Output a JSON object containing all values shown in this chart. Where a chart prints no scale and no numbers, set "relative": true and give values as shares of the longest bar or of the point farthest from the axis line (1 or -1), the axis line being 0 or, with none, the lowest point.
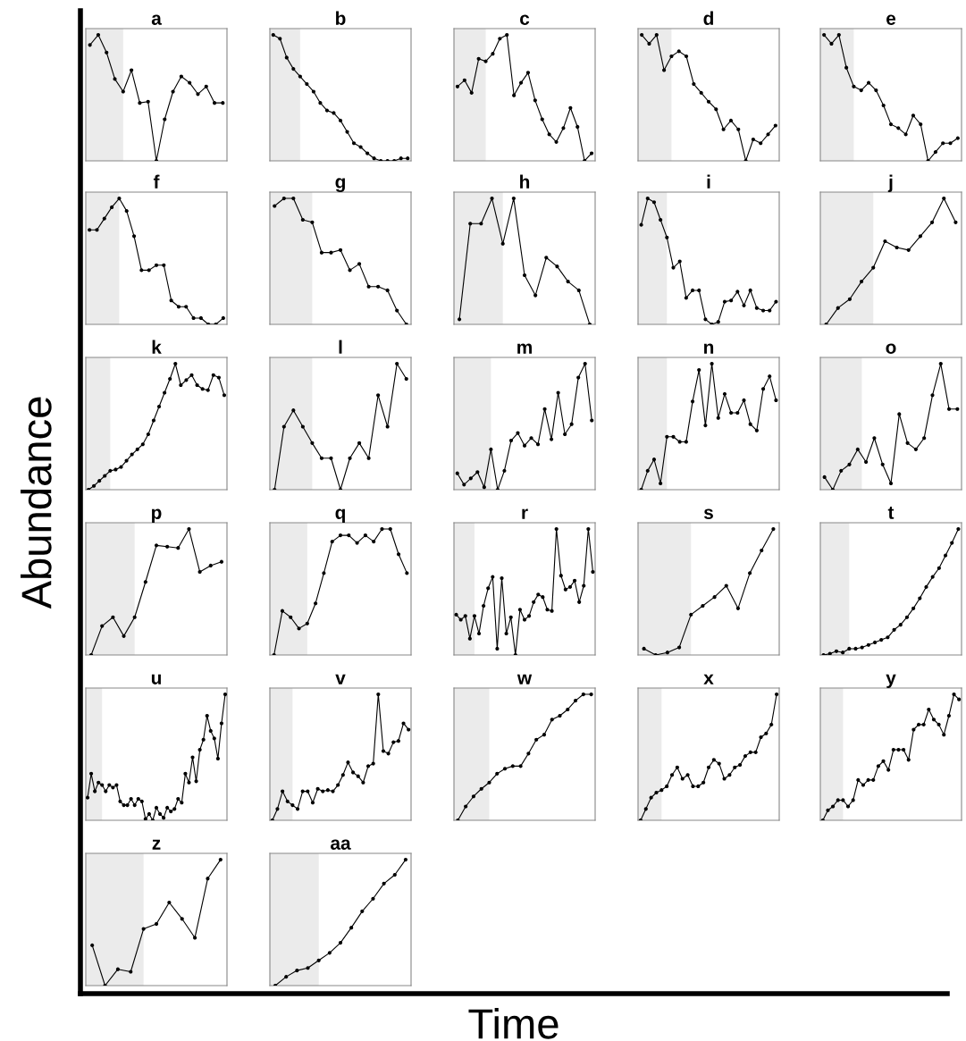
{
  "chart_data": [
    {
      "type": "line",
      "title": "a",
      "relative": true,
      "color": "#000000",
      "marker": "circle",
      "line_style": "solid",
      "categories": [
        null,
        null,
        null,
        null,
        null,
        null,
        null,
        null,
        null,
        null,
        null,
        null,
        null,
        null,
        null,
        null,
        null
      ],
      "values": [
        0.92,
        1,
        0.86,
        0.65,
        0.55,
        0.72,
        0.46,
        0.47,
        0,
        0.33,
        0.55,
        0.67,
        0.62,
        0.53,
        0.59,
        0.46,
        0.46
      ]
    },
    {
      "type": "line",
      "title": "b",
      "relative": true,
      "color": "#000000",
      "marker": "circle",
      "line_style": "solid",
      "categories": [
        null,
        null,
        null,
        null,
        null,
        null,
        null,
        null,
        null,
        null,
        null,
        null,
        null,
        null,
        null,
        null,
        null,
        null,
        null,
        null,
        null
      ],
      "values": [
        1,
        0.97,
        0.82,
        0.73,
        0.67,
        0.61,
        0.55,
        0.46,
        0.4,
        0.38,
        0.32,
        0.23,
        0.14,
        0.11,
        0.06,
        0.02,
        0,
        0,
        0,
        0.02,
        0.02
      ]
    },
    {
      "type": "line",
      "title": "c",
      "relative": true,
      "color": "#000000",
      "marker": "circle",
      "line_style": "solid",
      "categories": [
        null,
        null,
        null,
        null,
        null,
        null,
        null,
        null,
        null,
        null,
        null,
        null,
        null,
        null,
        null,
        null,
        null,
        null,
        null,
        null
      ],
      "values": [
        0.59,
        0.64,
        0.54,
        0.81,
        0.79,
        0.85,
        0.97,
        1,
        0.52,
        0.62,
        0.7,
        0.48,
        0.33,
        0.21,
        0.15,
        0.26,
        0.42,
        0.27,
        0,
        0.06
      ]
    },
    {
      "type": "line",
      "title": "d",
      "relative": true,
      "color": "#000000",
      "marker": "circle",
      "line_style": "solid",
      "categories": [
        null,
        null,
        null,
        null,
        null,
        null,
        null,
        null,
        null,
        null,
        null,
        null,
        null,
        null,
        null,
        null,
        null,
        null,
        null
      ],
      "values": [
        1,
        0.93,
        1,
        0.72,
        0.83,
        0.87,
        0.83,
        0.61,
        0.54,
        0.47,
        0.41,
        0.25,
        0.32,
        0.25,
        0,
        0.17,
        0.14,
        0.21,
        0.28
      ]
    },
    {
      "type": "line",
      "title": "e",
      "relative": true,
      "color": "#000000",
      "marker": "circle",
      "line_style": "solid",
      "categories": [
        null,
        null,
        null,
        null,
        null,
        null,
        null,
        null,
        null,
        null,
        null,
        null,
        null,
        null,
        null,
        null,
        null,
        null,
        null
      ],
      "values": [
        1,
        0.93,
        1,
        0.74,
        0.59,
        0.56,
        0.62,
        0.56,
        0.44,
        0.29,
        0.26,
        0.21,
        0.36,
        0.29,
        0,
        0.07,
        0.14,
        0.14,
        0.18
      ]
    },
    {
      "type": "line",
      "title": "f",
      "relative": true,
      "color": "#000000",
      "marker": "circle",
      "line_style": "solid",
      "categories": [
        null,
        null,
        null,
        null,
        null,
        null,
        null,
        null,
        null,
        null,
        null,
        null,
        null,
        null,
        null,
        null,
        null,
        null,
        null
      ],
      "values": [
        0.75,
        0.75,
        0.84,
        0.93,
        1,
        0.9,
        0.7,
        0.43,
        0.43,
        0.47,
        0.47,
        0.19,
        0.14,
        0.14,
        0.05,
        0.05,
        0,
        0,
        0.05
      ]
    },
    {
      "type": "line",
      "title": "g",
      "relative": true,
      "color": "#000000",
      "marker": "circle",
      "line_style": "solid",
      "categories": [
        null,
        null,
        null,
        null,
        null,
        null,
        null,
        null,
        null,
        null,
        null,
        null,
        null,
        null,
        null
      ],
      "values": [
        0.94,
        1,
        1,
        0.83,
        0.81,
        0.57,
        0.57,
        0.59,
        0.43,
        0.48,
        0.3,
        0.3,
        0.27,
        0.11,
        0
      ]
    },
    {
      "type": "line",
      "title": "h",
      "relative": true,
      "color": "#000000",
      "marker": "circle",
      "line_style": "solid",
      "categories": [
        null,
        null,
        null,
        null,
        null,
        null,
        null,
        null,
        null,
        null,
        null,
        null,
        null
      ],
      "values": [
        0.04,
        0.8,
        0.8,
        1,
        0.64,
        1,
        0.39,
        0.23,
        0.53,
        0.46,
        0.34,
        0.27,
        0
      ]
    },
    {
      "type": "line",
      "title": "i",
      "relative": true,
      "color": "#000000",
      "marker": "circle",
      "line_style": "solid",
      "categories": [
        null,
        null,
        null,
        null,
        null,
        null,
        null,
        null,
        null,
        null,
        null,
        null,
        null,
        null,
        null,
        null,
        null,
        null,
        null,
        null,
        null,
        null
      ],
      "values": [
        0.79,
        1,
        0.97,
        0.83,
        0.69,
        0.45,
        0.5,
        0.21,
        0.27,
        0.27,
        0.04,
        0,
        0.02,
        0.18,
        0.19,
        0.26,
        0.15,
        0.27,
        0.13,
        0.11,
        0.11,
        0.18
      ]
    },
    {
      "type": "line",
      "title": "j",
      "relative": true,
      "color": "#000000",
      "marker": "circle",
      "line_style": "solid",
      "categories": [
        null,
        null,
        null,
        null,
        null,
        null,
        null,
        null,
        null,
        null,
        null,
        null
      ],
      "values": [
        0,
        0.13,
        0.2,
        0.34,
        0.45,
        0.66,
        0.61,
        0.59,
        0.7,
        0.81,
        1,
        0.81
      ]
    },
    {
      "type": "line",
      "title": "k",
      "relative": true,
      "color": "#000000",
      "marker": "circle",
      "line_style": "solid",
      "categories": [
        null,
        null,
        null,
        null,
        null,
        null,
        null,
        null,
        null,
        null,
        null,
        null,
        null,
        null,
        null,
        null,
        null,
        null,
        null,
        null,
        null,
        null,
        null,
        null,
        null,
        null
      ],
      "values": [
        0,
        0.03,
        0.07,
        0.11,
        0.15,
        0.16,
        0.18,
        0.23,
        0.28,
        0.32,
        0.36,
        0.44,
        0.55,
        0.66,
        0.77,
        0.88,
        1,
        0.83,
        0.87,
        0.91,
        0.83,
        0.8,
        0.79,
        0.91,
        0.89,
        0.75
      ]
    },
    {
      "type": "line",
      "title": "l",
      "relative": true,
      "color": "#000000",
      "marker": "circle",
      "line_style": "solid",
      "categories": [
        null,
        null,
        null,
        null,
        null,
        null,
        null,
        null,
        null,
        null,
        null,
        null,
        null,
        null,
        null
      ],
      "values": [
        0,
        0.5,
        0.63,
        0.5,
        0.37,
        0.25,
        0.25,
        0,
        0.25,
        0.37,
        0.25,
        0.75,
        0.5,
        1,
        0.88
      ]
    },
    {
      "type": "line",
      "title": "m",
      "relative": true,
      "color": "#000000",
      "marker": "circle",
      "line_style": "solid",
      "categories": [
        null,
        null,
        null,
        null,
        null,
        null,
        null,
        null,
        null,
        null,
        null,
        null,
        null,
        null,
        null,
        null,
        null,
        null,
        null,
        null,
        null
      ],
      "values": [
        0.13,
        0.04,
        0.09,
        0.14,
        0.02,
        0.32,
        0,
        0.15,
        0.39,
        0.45,
        0.35,
        0.41,
        0.36,
        0.64,
        0.4,
        0.77,
        0.44,
        0.52,
        0.89,
        1,
        0.55
      ]
    },
    {
      "type": "line",
      "title": "n",
      "relative": true,
      "color": "#000000",
      "marker": "circle",
      "line_style": "solid",
      "categories": [
        null,
        null,
        null,
        null,
        null,
        null,
        null,
        null,
        null,
        null,
        null,
        null,
        null,
        null,
        null,
        null,
        null,
        null,
        null,
        null,
        null,
        null
      ],
      "values": [
        0,
        0.15,
        0.24,
        0.05,
        0.42,
        0.42,
        0.38,
        0.38,
        0.7,
        0.95,
        0.51,
        1,
        0.57,
        0.76,
        0.61,
        0.61,
        0.71,
        0.52,
        0.47,
        0.8,
        0.9,
        0.71
      ]
    },
    {
      "type": "line",
      "title": "o",
      "relative": true,
      "color": "#000000",
      "marker": "circle",
      "line_style": "solid",
      "categories": [
        null,
        null,
        null,
        null,
        null,
        null,
        null,
        null,
        null,
        null,
        null,
        null,
        null,
        null,
        null,
        null,
        null
      ],
      "values": [
        0.1,
        0,
        0.15,
        0.2,
        0.32,
        0.22,
        0.41,
        0.2,
        0.05,
        0.6,
        0.37,
        0.32,
        0.41,
        0.75,
        1,
        0.64,
        0.64
      ]
    },
    {
      "type": "line",
      "title": "p",
      "relative": true,
      "color": "#000000",
      "marker": "circle",
      "line_style": "solid",
      "categories": [
        null,
        null,
        null,
        null,
        null,
        null,
        null,
        null,
        null,
        null,
        null,
        null,
        null
      ],
      "values": [
        0,
        0.23,
        0.3,
        0.15,
        0.3,
        0.58,
        0.87,
        0.86,
        0.85,
        1,
        0.66,
        0.71,
        0.74
      ]
    },
    {
      "type": "line",
      "title": "q",
      "relative": true,
      "color": "#000000",
      "marker": "circle",
      "line_style": "solid",
      "categories": [
        null,
        null,
        null,
        null,
        null,
        null,
        null,
        null,
        null,
        null,
        null,
        null,
        null,
        null,
        null,
        null,
        null
      ],
      "values": [
        0,
        0.35,
        0.3,
        0.21,
        0.25,
        0.41,
        0.65,
        0.9,
        0.95,
        0.95,
        0.89,
        0.95,
        0.9,
        1,
        1,
        0.8,
        0.65
      ]
    },
    {
      "type": "line",
      "title": "r",
      "relative": true,
      "color": "#000000",
      "marker": "circle",
      "line_style": "solid",
      "categories": [
        null,
        null,
        null,
        null,
        null,
        null,
        null,
        null,
        null,
        null,
        null,
        null,
        null,
        null,
        null,
        null,
        null,
        null,
        null,
        null,
        null,
        null,
        null,
        null,
        null,
        null,
        null,
        null,
        null,
        null,
        null
      ],
      "values": [
        0.32,
        0.28,
        0.31,
        0.13,
        0.31,
        0.17,
        0.39,
        0.53,
        0.62,
        0.05,
        0.61,
        0.17,
        0.3,
        0,
        0.36,
        0.28,
        0.31,
        0.42,
        0.48,
        0.46,
        0.36,
        0.35,
        1,
        0.63,
        0.52,
        0.54,
        0.59,
        0.42,
        0.55,
        1,
        0.66
      ]
    },
    {
      "type": "line",
      "title": "s",
      "relative": true,
      "color": "#000000",
      "marker": "circle",
      "line_style": "solid",
      "categories": [
        null,
        null,
        null,
        null,
        null,
        null,
        null,
        null,
        null,
        null,
        null,
        null
      ],
      "values": [
        0.05,
        0,
        0.02,
        0.06,
        0.32,
        0.39,
        0.46,
        0.55,
        0.37,
        0.65,
        0.83,
        1
      ]
    },
    {
      "type": "line",
      "title": "t",
      "relative": true,
      "color": "#000000",
      "marker": "circle",
      "line_style": "solid",
      "categories": [
        null,
        null,
        null,
        null,
        null,
        null,
        null,
        null,
        null,
        null,
        null,
        null,
        null,
        null,
        null,
        null,
        null,
        null,
        null,
        null,
        null,
        null
      ],
      "values": [
        0,
        0.01,
        0.03,
        0.02,
        0.05,
        0.05,
        0.06,
        0.08,
        0.1,
        0.12,
        0.14,
        0.2,
        0.24,
        0.3,
        0.37,
        0.45,
        0.54,
        0.62,
        0.69,
        0.79,
        0.89,
        1
      ]
    },
    {
      "type": "line",
      "title": "u",
      "relative": true,
      "color": "#000000",
      "marker": "circle",
      "line_style": "solid",
      "categories": [
        null,
        null,
        null,
        null,
        null,
        null,
        null,
        null,
        null,
        null,
        null,
        null,
        null,
        null,
        null,
        null,
        null,
        null,
        null,
        null,
        null,
        null,
        null,
        null,
        null,
        null,
        null,
        null,
        null,
        null,
        null,
        null,
        null,
        null,
        null,
        null,
        null,
        null,
        null
      ],
      "values": [
        0.18,
        0.37,
        0.23,
        0.3,
        0.28,
        0.23,
        0.28,
        0.26,
        0.28,
        0.15,
        0.12,
        0.12,
        0.17,
        0.12,
        0.17,
        0.15,
        0.01,
        0.05,
        0,
        0.1,
        0.05,
        0.02,
        0.1,
        0.07,
        0.09,
        0.17,
        0.14,
        0.37,
        0.3,
        0.5,
        0.31,
        0.56,
        0.64,
        0.83,
        0.71,
        0.65,
        0.49,
        0.77,
        1
      ]
    },
    {
      "type": "line",
      "title": "v",
      "relative": true,
      "color": "#000000",
      "marker": "circle",
      "line_style": "solid",
      "categories": [
        null,
        null,
        null,
        null,
        null,
        null,
        null,
        null,
        null,
        null,
        null,
        null,
        null,
        null,
        null,
        null,
        null,
        null,
        null,
        null,
        null,
        null,
        null,
        null,
        null,
        null,
        null,
        null
      ],
      "values": [
        0,
        0.09,
        0.23,
        0.15,
        0.12,
        0.09,
        0.23,
        0.23,
        0.14,
        0.25,
        0.23,
        0.24,
        0.23,
        0.28,
        0.36,
        0.46,
        0.38,
        0.35,
        0.3,
        0.43,
        0.45,
        1,
        0.55,
        0.53,
        0.62,
        0.63,
        0.77,
        0.72
      ]
    },
    {
      "type": "line",
      "title": "w",
      "relative": true,
      "color": "#000000",
      "marker": "circle",
      "line_style": "solid",
      "categories": [
        null,
        null,
        null,
        null,
        null,
        null,
        null,
        null,
        null,
        null,
        null,
        null,
        null,
        null,
        null,
        null,
        null,
        null
      ],
      "values": [
        0,
        0.11,
        0.19,
        0.25,
        0.3,
        0.37,
        0.41,
        0.43,
        0.43,
        0.53,
        0.64,
        0.68,
        0.8,
        0.83,
        0.88,
        0.95,
        1,
        1
      ]
    },
    {
      "type": "line",
      "title": "x",
      "relative": true,
      "color": "#000000",
      "marker": "circle",
      "line_style": "solid",
      "categories": [
        null,
        null,
        null,
        null,
        null,
        null,
        null,
        null,
        null,
        null,
        null,
        null,
        null,
        null,
        null,
        null,
        null,
        null,
        null,
        null,
        null,
        null,
        null,
        null,
        null,
        null,
        null
      ],
      "values": [
        0,
        0.09,
        0.18,
        0.22,
        0.24,
        0.27,
        0.36,
        0.42,
        0.33,
        0.36,
        0.27,
        0.27,
        0.3,
        0.42,
        0.48,
        0.45,
        0.33,
        0.36,
        0.42,
        0.44,
        0.51,
        0.54,
        0.54,
        0.66,
        0.69,
        0.76,
        1
      ]
    },
    {
      "type": "line",
      "title": "y",
      "relative": true,
      "color": "#000000",
      "marker": "circle",
      "line_style": "solid",
      "categories": [
        null,
        null,
        null,
        null,
        null,
        null,
        null,
        null,
        null,
        null,
        null,
        null,
        null,
        null,
        null,
        null,
        null,
        null,
        null,
        null,
        null,
        null,
        null,
        null,
        null,
        null,
        null,
        null
      ],
      "values": [
        0,
        0.08,
        0.11,
        0.16,
        0.16,
        0.11,
        0.16,
        0.32,
        0.28,
        0.32,
        0.32,
        0.43,
        0.47,
        0.4,
        0.56,
        0.56,
        0.56,
        0.48,
        0.72,
        0.76,
        0.76,
        0.88,
        0.8,
        0.76,
        0.68,
        0.83,
        1,
        0.96
      ]
    },
    {
      "type": "line",
      "title": "z",
      "relative": true,
      "color": "#000000",
      "marker": "circle",
      "line_style": "solid",
      "categories": [
        null,
        null,
        null,
        null,
        null,
        null,
        null,
        null,
        null,
        null,
        null
      ],
      "values": [
        0.32,
        0,
        0.13,
        0.11,
        0.45,
        0.49,
        0.66,
        0.53,
        0.38,
        0.85,
        1
      ]
    },
    {
      "type": "line",
      "title": "aa",
      "relative": true,
      "color": "#000000",
      "marker": "circle",
      "line_style": "solid",
      "categories": [
        null,
        null,
        null,
        null,
        null,
        null,
        null,
        null,
        null,
        null,
        null,
        null,
        null
      ],
      "values": [
        0,
        0.07,
        0.12,
        0.14,
        0.2,
        0.26,
        0.34,
        0.46,
        0.59,
        0.69,
        0.81,
        0.88,
        1
      ]
    },
    {
      "type": "other",
      "xlabel": "Time",
      "ylabel": "Abundance"
    }
  ]
}
